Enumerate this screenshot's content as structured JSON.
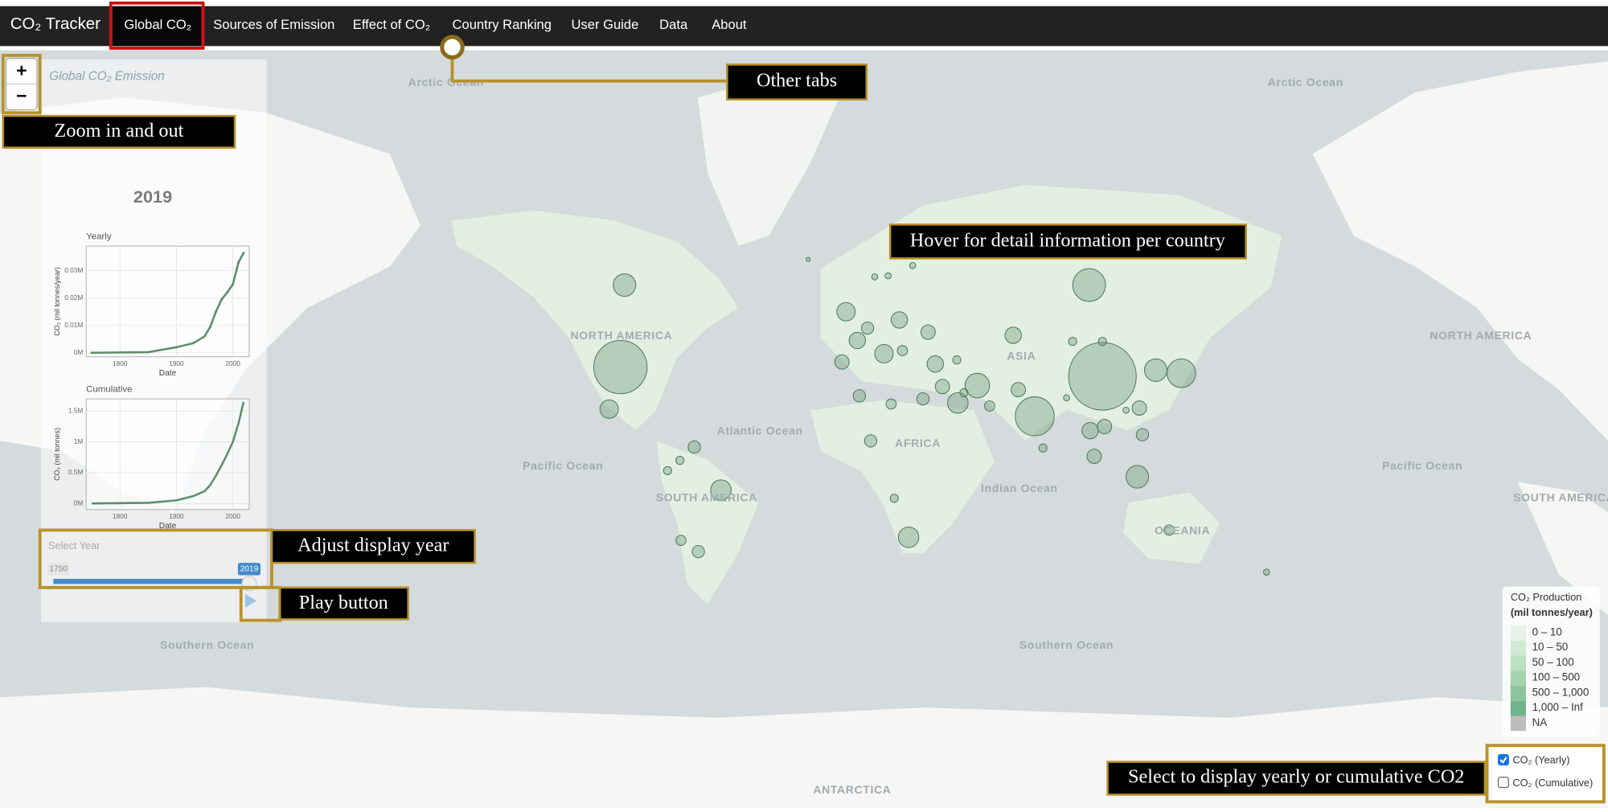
{
  "nav": {
    "brand": "CO₂ Tracker",
    "tabs": [
      "Global CO₂",
      "Sources of Emission",
      "Effect of CO₂",
      "Country Ranking",
      "User Guide",
      "Data",
      "About"
    ]
  },
  "zoom": {
    "in": "+",
    "out": "−"
  },
  "sidebar": {
    "title": "Global CO₂ Emission",
    "year": "2019",
    "charts": [
      {
        "type": "line",
        "title": "Yearly",
        "x_label": "Date",
        "y_label": "CO₂ (mil tonnes/year)",
        "color": "#5b8f6b",
        "x": [
          1750,
          1850,
          1900,
          1930,
          1950,
          1960,
          1970,
          1980,
          1990,
          2000,
          2010,
          2019
        ],
        "values": [
          0,
          200,
          2000,
          3500,
          6000,
          9500,
          15000,
          19500,
          22000,
          25000,
          33000,
          36500
        ],
        "xlim": [
          1740,
          2029
        ],
        "ylim": [
          -1500,
          39000
        ],
        "xticks": [
          1800,
          1900,
          2000
        ],
        "yticks": [
          {
            "value": 0,
            "label": "0M"
          },
          {
            "value": 10000,
            "label": "0.01M"
          },
          {
            "value": 20000,
            "label": "0.02M"
          },
          {
            "value": 30000,
            "label": "0.03M"
          }
        ]
      },
      {
        "type": "line",
        "title": "Cumulative",
        "x_label": "Date",
        "y_label": "CO₂ (mil tonnes)",
        "color": "#5b8f6b",
        "x": [
          1750,
          1850,
          1900,
          1930,
          1950,
          1960,
          1970,
          1980,
          1990,
          2000,
          2010,
          2019
        ],
        "values": [
          0,
          10000,
          50000,
          120000,
          200000,
          300000,
          450000,
          620000,
          800000,
          1000000,
          1300000,
          1650000
        ],
        "xlim": [
          1740,
          2029
        ],
        "ylim": [
          -100000,
          1700000
        ],
        "xticks": [
          1800,
          1900,
          2000
        ],
        "yticks": [
          {
            "value": 0,
            "label": "0M"
          },
          {
            "value": 500000,
            "label": "0.5M"
          },
          {
            "value": 1000000,
            "label": "1M"
          },
          {
            "value": 1500000,
            "label": "1.5M"
          }
        ]
      }
    ],
    "slider": {
      "label": "Select Year",
      "min": "1750",
      "value": "2019"
    }
  },
  "map": {
    "labels": [
      "Arctic Ocean",
      "Arctic Ocean",
      "NORTH AMERICA",
      "NORTH AMERICA",
      "Atlantic Ocean",
      "Pacific Ocean",
      "Pacific Ocean",
      "SOUTH AMERICA",
      "SOUTH AMERICA",
      "AFRICA",
      "ASIA",
      "Indian Ocean",
      "OCEANIA",
      "Southern Ocean",
      "Southern Ocean",
      "ANTARCTICA"
    ]
  },
  "legend": {
    "title": "CO₂ Production",
    "subtitle": "(mil tonnes/year)",
    "items": [
      {
        "label": "0 – 10",
        "color": "#e6f2e6"
      },
      {
        "label": "10 – 50",
        "color": "#d2e9d3"
      },
      {
        "label": "50 – 100",
        "color": "#bde0c0"
      },
      {
        "label": "100 – 500",
        "color": "#a5d3ab"
      },
      {
        "label": "500 – 1,000",
        "color": "#8cc59b"
      },
      {
        "label": "1,000 – Inf",
        "color": "#6fb48a"
      },
      {
        "label": "NA",
        "color": "#bdbdbd"
      }
    ]
  },
  "toggles": [
    {
      "label": "CO₂ (Yearly)",
      "checked": true
    },
    {
      "label": "CO₂ (Cumulative)",
      "checked": false
    }
  ],
  "annotations": [
    "Zoom in and out",
    "Other tabs",
    "Hover for detail information per country",
    "Adjust display year",
    "Play button",
    "Select to display yearly or cumulative CO2"
  ]
}
